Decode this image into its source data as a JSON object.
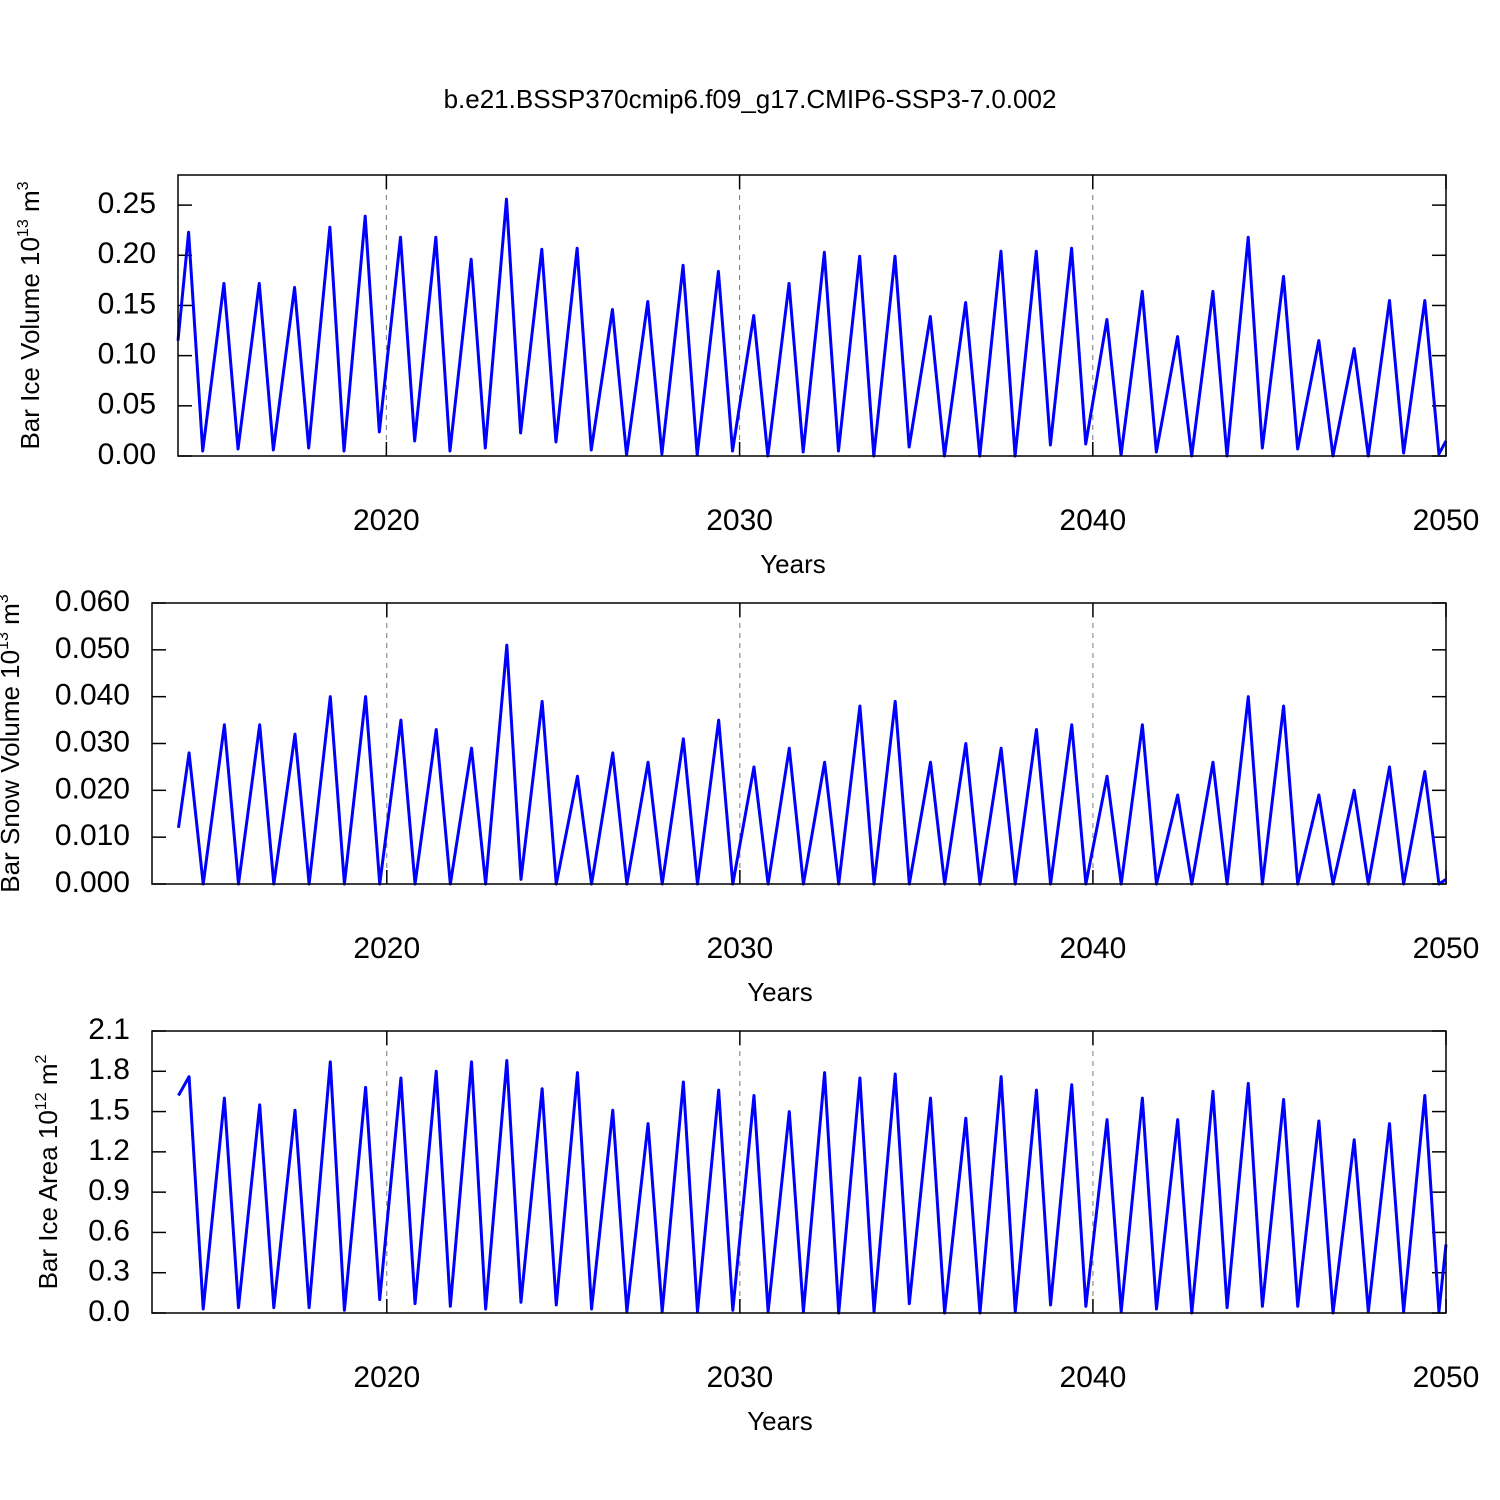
{
  "chart_data": [
    {
      "type": "line",
      "title": "b.e21.BSSP370cmip6.f09_g17.CMIP6-SSP3-7.0.002",
      "ylabel": [
        "Bar Ice Volume 10",
        "13",
        " m",
        "3"
      ],
      "xlabel": "Years",
      "color": "#0000ff",
      "xlim": [
        2014.1,
        2050
      ],
      "xticks": [
        2020,
        2030,
        2040,
        2050
      ],
      "grid": true,
      "ylim": [
        0,
        0.28
      ],
      "yticks": [
        {
          "value": 0,
          "label": "0.00"
        },
        {
          "value": 0.05,
          "label": "0.05"
        },
        {
          "value": 0.1,
          "label": "0.10"
        },
        {
          "value": 0.15,
          "label": "0.15"
        },
        {
          "value": 0.2,
          "label": "0.20"
        },
        {
          "value": 0.25,
          "label": "0.25"
        }
      ],
      "x": [
        2014.1,
        2014.4,
        2014.8,
        2015.4,
        2015.8,
        2016.4,
        2016.8,
        2017.4,
        2017.8,
        2018.4,
        2018.8,
        2019.4,
        2019.8,
        2020.4,
        2020.8,
        2021.4,
        2021.8,
        2022.4,
        2022.8,
        2023.4,
        2023.8,
        2024.4,
        2024.8,
        2025.4,
        2025.8,
        2026.4,
        2026.8,
        2027.4,
        2027.8,
        2028.4,
        2028.8,
        2029.4,
        2029.8,
        2030.4,
        2030.8,
        2031.4,
        2031.8,
        2032.4,
        2032.8,
        2033.4,
        2033.8,
        2034.4,
        2034.8,
        2035.4,
        2035.8,
        2036.4,
        2036.8,
        2037.4,
        2037.8,
        2038.4,
        2038.8,
        2039.4,
        2039.8,
        2040.4,
        2040.8,
        2041.4,
        2041.8,
        2042.4,
        2042.8,
        2043.4,
        2043.8,
        2044.4,
        2044.8,
        2045.4,
        2045.8,
        2046.4,
        2046.8,
        2047.4,
        2047.8,
        2048.4,
        2048.8,
        2049.4,
        2049.8,
        2050.0
      ],
      "values": [
        0.115,
        0.223,
        0.005,
        0.172,
        0.007,
        0.172,
        0.006,
        0.168,
        0.008,
        0.228,
        0.005,
        0.239,
        0.024,
        0.218,
        0.015,
        0.218,
        0.005,
        0.196,
        0.008,
        0.256,
        0.023,
        0.206,
        0.014,
        0.207,
        0.006,
        0.146,
        0.001,
        0.154,
        0.002,
        0.19,
        0.001,
        0.184,
        0.005,
        0.14,
        0.0,
        0.172,
        0.004,
        0.203,
        0.005,
        0.199,
        0.0,
        0.199,
        0.009,
        0.139,
        0.0,
        0.153,
        0.0,
        0.204,
        0.0,
        0.204,
        0.011,
        0.207,
        0.012,
        0.136,
        0.001,
        0.164,
        0.004,
        0.119,
        0.0,
        0.164,
        0.0,
        0.218,
        0.008,
        0.179,
        0.007,
        0.115,
        0.0,
        0.107,
        0.0,
        0.155,
        0.003,
        0.155,
        0.002,
        0.015
      ]
    },
    {
      "type": "line",
      "ylabel": [
        "Bar Snow Volume 10",
        "13",
        " m",
        "3"
      ],
      "xlabel": "Years",
      "color": "#0000ff",
      "xlim": [
        2013.35,
        2050
      ],
      "xticks": [
        2020,
        2030,
        2040,
        2050
      ],
      "grid": true,
      "ylim": [
        0,
        0.06
      ],
      "yticks": [
        {
          "value": 0,
          "label": "0.000"
        },
        {
          "value": 0.01,
          "label": "0.010"
        },
        {
          "value": 0.02,
          "label": "0.020"
        },
        {
          "value": 0.03,
          "label": "0.030"
        },
        {
          "value": 0.04,
          "label": "0.040"
        },
        {
          "value": 0.05,
          "label": "0.050"
        },
        {
          "value": 0.06,
          "label": "0.060"
        }
      ],
      "x": [
        2014.1,
        2014.4,
        2014.8,
        2015.4,
        2015.8,
        2016.4,
        2016.8,
        2017.4,
        2017.8,
        2018.4,
        2018.8,
        2019.4,
        2019.8,
        2020.4,
        2020.8,
        2021.4,
        2021.8,
        2022.4,
        2022.8,
        2023.4,
        2023.8,
        2024.4,
        2024.8,
        2025.4,
        2025.8,
        2026.4,
        2026.8,
        2027.4,
        2027.8,
        2028.4,
        2028.8,
        2029.4,
        2029.8,
        2030.4,
        2030.8,
        2031.4,
        2031.8,
        2032.4,
        2032.8,
        2033.4,
        2033.8,
        2034.4,
        2034.8,
        2035.4,
        2035.8,
        2036.4,
        2036.8,
        2037.4,
        2037.8,
        2038.4,
        2038.8,
        2039.4,
        2039.8,
        2040.4,
        2040.8,
        2041.4,
        2041.8,
        2042.4,
        2042.8,
        2043.4,
        2043.8,
        2044.4,
        2044.8,
        2045.4,
        2045.8,
        2046.4,
        2046.8,
        2047.4,
        2047.8,
        2048.4,
        2048.8,
        2049.4,
        2049.8,
        2050.0
      ],
      "values": [
        0.012,
        0.028,
        0,
        0.034,
        0,
        0.034,
        0,
        0.032,
        0,
        0.04,
        0,
        0.04,
        0,
        0.035,
        0,
        0.033,
        0,
        0.029,
        0,
        0.051,
        0.001,
        0.039,
        0,
        0.023,
        0,
        0.028,
        0,
        0.026,
        0,
        0.031,
        0,
        0.035,
        0,
        0.025,
        0,
        0.029,
        0,
        0.026,
        0,
        0.038,
        0,
        0.039,
        0,
        0.026,
        0,
        0.03,
        0,
        0.029,
        0,
        0.033,
        0,
        0.034,
        0,
        0.023,
        0,
        0.034,
        0,
        0.019,
        0,
        0.026,
        0,
        0.04,
        0,
        0.038,
        0,
        0.019,
        0,
        0.02,
        0,
        0.025,
        0,
        0.024,
        0,
        0.001
      ]
    },
    {
      "type": "line",
      "ylabel": [
        "Bar Ice Area 10",
        "12",
        " m",
        "2"
      ],
      "xlabel": "Years",
      "color": "#0000ff",
      "xlim": [
        2013.35,
        2050
      ],
      "xticks": [
        2020,
        2030,
        2040,
        2050
      ],
      "grid": true,
      "ylim": [
        0,
        2.1
      ],
      "yticks": [
        {
          "value": 0,
          "label": "0.0"
        },
        0.3,
        0.6,
        0.9,
        1.2,
        1.5,
        1.8,
        2.1
      ],
      "x": [
        2014.1,
        2014.4,
        2014.8,
        2015.4,
        2015.8,
        2016.4,
        2016.8,
        2017.4,
        2017.8,
        2018.4,
        2018.8,
        2019.4,
        2019.8,
        2020.4,
        2020.8,
        2021.4,
        2021.8,
        2022.4,
        2022.8,
        2023.4,
        2023.8,
        2024.4,
        2024.8,
        2025.4,
        2025.8,
        2026.4,
        2026.8,
        2027.4,
        2027.8,
        2028.4,
        2028.8,
        2029.4,
        2029.8,
        2030.4,
        2030.8,
        2031.4,
        2031.8,
        2032.4,
        2032.8,
        2033.4,
        2033.8,
        2034.4,
        2034.8,
        2035.4,
        2035.8,
        2036.4,
        2036.8,
        2037.4,
        2037.8,
        2038.4,
        2038.8,
        2039.4,
        2039.8,
        2040.4,
        2040.8,
        2041.4,
        2041.8,
        2042.4,
        2042.8,
        2043.4,
        2043.8,
        2044.4,
        2044.8,
        2045.4,
        2045.8,
        2046.4,
        2046.8,
        2047.4,
        2047.8,
        2048.4,
        2048.8,
        2049.4,
        2049.8,
        2050.0
      ],
      "values": [
        1.62,
        1.76,
        0.03,
        1.6,
        0.04,
        1.55,
        0.04,
        1.51,
        0.04,
        1.87,
        0.02,
        1.68,
        0.1,
        1.75,
        0.07,
        1.8,
        0.05,
        1.87,
        0.03,
        1.88,
        0.08,
        1.67,
        0.06,
        1.79,
        0.03,
        1.51,
        0.01,
        1.41,
        0.01,
        1.72,
        0.01,
        1.66,
        0.02,
        1.62,
        0.01,
        1.5,
        0.01,
        1.79,
        0.0,
        1.75,
        0.01,
        1.78,
        0.07,
        1.6,
        0.0,
        1.45,
        0.0,
        1.76,
        0.01,
        1.66,
        0.06,
        1.7,
        0.05,
        1.44,
        0.01,
        1.6,
        0.03,
        1.44,
        0.0,
        1.65,
        0.04,
        1.71,
        0.05,
        1.59,
        0.05,
        1.43,
        0.0,
        1.29,
        0.01,
        1.41,
        0.01,
        1.62,
        0.01,
        0.51
      ]
    }
  ]
}
